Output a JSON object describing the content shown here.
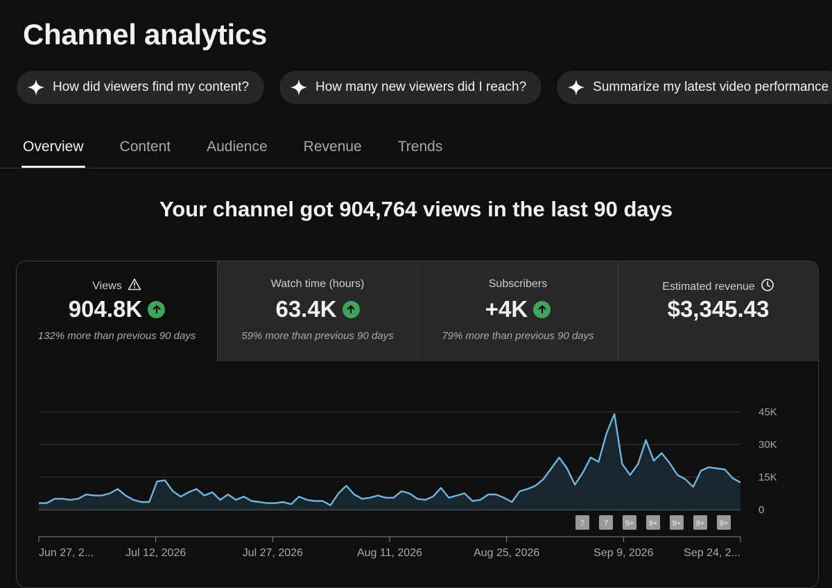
{
  "page": {
    "title": "Channel analytics"
  },
  "chips": [
    {
      "label": "How did viewers find my content?",
      "icon": "sparkle-icon"
    },
    {
      "label": "How many new viewers did I reach?",
      "icon": "sparkle-icon"
    },
    {
      "label": "Summarize my latest video performance",
      "icon": "sparkle-icon"
    }
  ],
  "tabs": [
    {
      "label": "Overview",
      "active": true
    },
    {
      "label": "Content",
      "active": false
    },
    {
      "label": "Audience",
      "active": false
    },
    {
      "label": "Revenue",
      "active": false
    },
    {
      "label": "Trends",
      "active": false
    }
  ],
  "headline": "Your channel got 904,764 views in the last 90 days",
  "metrics": [
    {
      "label": "Views",
      "value": "904.8K",
      "note": "132% more than previous 90 days",
      "trend": "up",
      "icon": "warning-icon"
    },
    {
      "label": "Watch time (hours)",
      "value": "63.4K",
      "note": "59% more than previous 90 days",
      "trend": "up"
    },
    {
      "label": "Subscribers",
      "value": "+4K",
      "note": "79% more than previous 90 days",
      "trend": "up"
    },
    {
      "label": "Estimated revenue",
      "value": "$3,345.43",
      "icon": "clock-icon"
    }
  ],
  "colors": {
    "accent": "#6fb7e3",
    "trend_up": "#3ea55b",
    "background": "#0f0f0f",
    "panel": "#282828"
  },
  "chart_data": {
    "type": "line",
    "series": [
      {
        "values": [
          3000,
          3000,
          5000,
          5000,
          4500,
          5000,
          7000,
          6500,
          6500,
          7500,
          9500,
          6500,
          4500,
          3500,
          3500,
          13000,
          13500,
          8500,
          6000,
          8000,
          9500,
          6500,
          8000,
          4500,
          7000,
          4500,
          6000,
          4000,
          3500,
          3000,
          3000,
          3500,
          2500,
          6000,
          4500,
          4000,
          4000,
          2000,
          7500,
          11000,
          7000,
          5000,
          5500,
          6500,
          5500,
          5500,
          8500,
          7500,
          5000,
          4500,
          6000,
          10000,
          5500,
          6500,
          7500,
          4000,
          4500,
          7000,
          7000,
          5500,
          3500,
          8500,
          9500,
          11000,
          14000,
          19000,
          24000,
          19000,
          11500,
          17000,
          24000,
          22000,
          35000,
          44000,
          21000,
          16000,
          21000,
          32000,
          22500,
          26000,
          21500,
          16000,
          14000,
          10500,
          18000,
          19500,
          19000,
          18500,
          14500,
          12500
        ]
      }
    ],
    "x_tick_labels": [
      "Jun 27, 2...",
      "Jul 12, 2026",
      "Jul 27, 2026",
      "Aug 11, 2026",
      "Aug 25, 2026",
      "Sep 9, 2026",
      "Sep 24, 2..."
    ],
    "y_tick_labels": [
      "45K",
      "30K",
      "15K",
      "0"
    ],
    "ylim": [
      0,
      45000
    ],
    "grid": true,
    "markers": [
      "7",
      "7",
      "9+",
      "9+",
      "9+",
      "9+",
      "9+"
    ]
  }
}
